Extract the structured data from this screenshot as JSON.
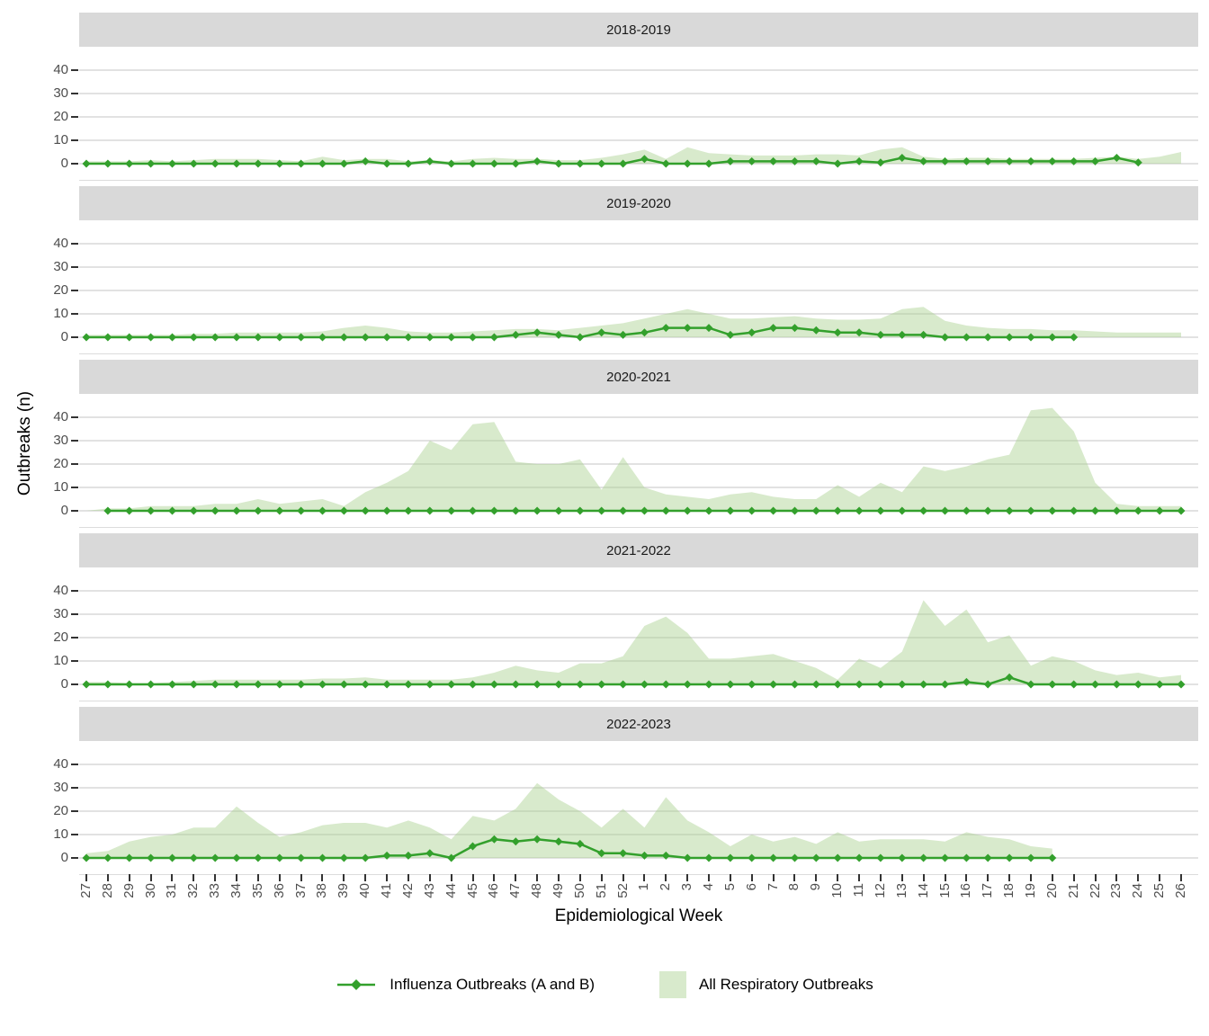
{
  "figure": {
    "y_title": "Outbreaks (n)",
    "x_title": "Epidemiological Week",
    "legend": {
      "line_label": "Influenza Outbreaks (A and B)",
      "area_label": "All Respiratory Outbreaks"
    }
  },
  "colors": {
    "line": "#33a02c",
    "area_fill": "rgba(168,208,141,0.45)",
    "strip_bg": "#d9d9d9",
    "grid": "#d8d8d8",
    "axis_text": "#4d4d4d",
    "tick": "#333333",
    "text": "#000000"
  },
  "chart_data": {
    "type": "area",
    "note": "Faceted seasonal chart: light-green area = All Respiratory Outbreaks, green diamond line = Influenza Outbreaks (A and B). X = epidemiological week 27..52 then 1..26. Null = no data reported.",
    "x": [
      "27",
      "28",
      "29",
      "30",
      "31",
      "32",
      "33",
      "34",
      "35",
      "36",
      "37",
      "38",
      "39",
      "40",
      "41",
      "42",
      "43",
      "44",
      "45",
      "46",
      "47",
      "48",
      "49",
      "50",
      "51",
      "52",
      "1",
      "2",
      "3",
      "4",
      "5",
      "6",
      "7",
      "8",
      "9",
      "10",
      "11",
      "12",
      "13",
      "14",
      "15",
      "16",
      "17",
      "18",
      "19",
      "20",
      "21",
      "22",
      "23",
      "24",
      "25",
      "26"
    ],
    "y_ticks": [
      0,
      10,
      20,
      30,
      40
    ],
    "ylim": [
      0,
      47
    ],
    "grid": true,
    "legend_position": "bottom",
    "facets": [
      {
        "title": "2018-2019",
        "series": [
          {
            "name": "All Respiratory Outbreaks",
            "type": "area",
            "values": [
              1,
              1,
              1,
              1.5,
              1,
              1.5,
              2,
              2,
              2,
              1.5,
              1,
              3,
              1.5,
              2,
              2,
              1,
              1.5,
              1,
              2,
              2.5,
              2,
              2,
              1.5,
              1.5,
              2.5,
              4,
              6,
              2,
              7,
              4.5,
              4,
              3.5,
              3.5,
              3.5,
              4,
              4,
              3.5,
              6,
              7,
              3,
              2,
              2.5,
              2.5,
              2,
              2,
              2,
              2,
              2.5,
              3,
              2,
              3,
              5
            ]
          },
          {
            "name": "Influenza Outbreaks (A and B)",
            "type": "line",
            "values": [
              0,
              0,
              0,
              0,
              0,
              0,
              0,
              0,
              0,
              0,
              0,
              0,
              0,
              1,
              0,
              0,
              1,
              0,
              0,
              0,
              0,
              1,
              0,
              0,
              0,
              0,
              2,
              0,
              0,
              0,
              1,
              1,
              1,
              1,
              1,
              0,
              1,
              0.5,
              2.5,
              1,
              1,
              1,
              1,
              1,
              1,
              1,
              1,
              1,
              2.5,
              0.5,
              null,
              null
            ]
          }
        ]
      },
      {
        "title": "2019-2020",
        "series": [
          {
            "name": "All Respiratory Outbreaks",
            "type": "area",
            "values": [
              1,
              1,
              1,
              1,
              1,
              1.5,
              1.5,
              2,
              2,
              2,
              2,
              2.5,
              4,
              5,
              4,
              2.5,
              2,
              2,
              2.5,
              3,
              3.5,
              3.5,
              3,
              4,
              5,
              6,
              8,
              10,
              12,
              10,
              8,
              8,
              8.5,
              9,
              8,
              7.5,
              7.5,
              8,
              12,
              13,
              7,
              5,
              4,
              3.5,
              3.5,
              3,
              3,
              2.5,
              2,
              2,
              2,
              2
            ]
          },
          {
            "name": "Influenza Outbreaks (A and B)",
            "type": "line",
            "values": [
              0,
              0,
              0,
              0,
              0,
              0,
              0,
              0,
              0,
              0,
              0,
              0,
              0,
              0,
              0,
              0,
              0,
              0,
              0,
              0,
              1,
              2,
              1,
              0,
              2,
              1,
              2,
              4,
              4,
              4,
              1,
              2,
              4,
              4,
              3,
              2,
              2,
              1,
              1,
              1,
              0,
              0,
              0,
              0,
              0,
              0,
              0,
              null,
              null,
              null,
              null,
              null
            ]
          }
        ]
      },
      {
        "title": "2020-2021",
        "series": [
          {
            "name": "All Respiratory Outbreaks",
            "type": "area",
            "values": [
              0,
              1,
              1,
              2,
              2,
              2,
              3,
              3,
              5,
              3,
              4,
              5,
              2,
              8,
              12,
              17,
              30,
              26,
              37,
              38,
              21,
              20,
              20,
              22,
              9,
              23,
              10,
              7,
              6,
              5,
              7,
              8,
              6,
              5,
              5,
              11,
              6,
              12,
              8,
              19,
              17,
              19,
              22,
              24,
              43,
              44,
              34,
              12,
              3,
              2,
              2,
              2
            ]
          },
          {
            "name": "Influenza Outbreaks (A and B)",
            "type": "line",
            "values": [
              null,
              0,
              0,
              0,
              0,
              0,
              0,
              0,
              0,
              0,
              0,
              0,
              0,
              0,
              0,
              0,
              0,
              0,
              0,
              0,
              0,
              0,
              0,
              0,
              0,
              0,
              0,
              0,
              0,
              0,
              0,
              0,
              0,
              0,
              0,
              0,
              0,
              0,
              0,
              0,
              0,
              0,
              0,
              0,
              0,
              0,
              0,
              0,
              0,
              0,
              0,
              0
            ]
          }
        ]
      },
      {
        "title": "2021-2022",
        "series": [
          {
            "name": "All Respiratory Outbreaks",
            "type": "area",
            "values": [
              1,
              1,
              0.5,
              0.5,
              1,
              1.5,
              2,
              2,
              2,
              2,
              2,
              2.5,
              2.5,
              3,
              2,
              2,
              2,
              2,
              3,
              5,
              8,
              6,
              5,
              9,
              9,
              12,
              25,
              29,
              22,
              11,
              11,
              12,
              13,
              10,
              7,
              2,
              11,
              7,
              14,
              36,
              25,
              32,
              18,
              21,
              8,
              12,
              10,
              6,
              4,
              5,
              3,
              4
            ]
          },
          {
            "name": "Influenza Outbreaks (A and B)",
            "type": "line",
            "values": [
              0,
              0,
              0,
              0,
              0,
              0,
              0,
              0,
              0,
              0,
              0,
              0,
              0,
              0,
              0,
              0,
              0,
              0,
              0,
              0,
              0,
              0,
              0,
              0,
              0,
              0,
              0,
              0,
              0,
              0,
              0,
              0,
              0,
              0,
              0,
              0,
              0,
              0,
              0,
              0,
              0,
              1,
              0,
              3,
              0,
              0,
              0,
              0,
              0,
              0,
              0,
              0
            ]
          }
        ]
      },
      {
        "title": "2022-2023",
        "series": [
          {
            "name": "All Respiratory Outbreaks",
            "type": "area",
            "values": [
              2,
              3,
              7,
              9,
              10,
              13,
              13,
              22,
              15,
              9,
              11,
              14,
              15,
              15,
              13,
              16,
              13,
              8,
              18,
              16,
              21,
              32,
              25,
              20,
              13,
              21,
              13,
              26,
              16,
              11,
              5,
              10,
              7,
              9,
              6,
              11,
              7,
              8,
              8,
              8,
              7,
              11,
              9,
              8,
              5,
              4,
              null,
              null,
              null,
              null,
              null,
              null
            ]
          },
          {
            "name": "Influenza Outbreaks (A and B)",
            "type": "line",
            "values": [
              0,
              0,
              0,
              0,
              0,
              0,
              0,
              0,
              0,
              0,
              0,
              0,
              0,
              0,
              1,
              1,
              2,
              0,
              5,
              8,
              7,
              8,
              7,
              6,
              2,
              2,
              1,
              1,
              0,
              0,
              0,
              0,
              0,
              0,
              0,
              0,
              0,
              0,
              0,
              0,
              0,
              0,
              0,
              0,
              0,
              0,
              null,
              null,
              null,
              null,
              null,
              null
            ]
          }
        ]
      }
    ]
  }
}
